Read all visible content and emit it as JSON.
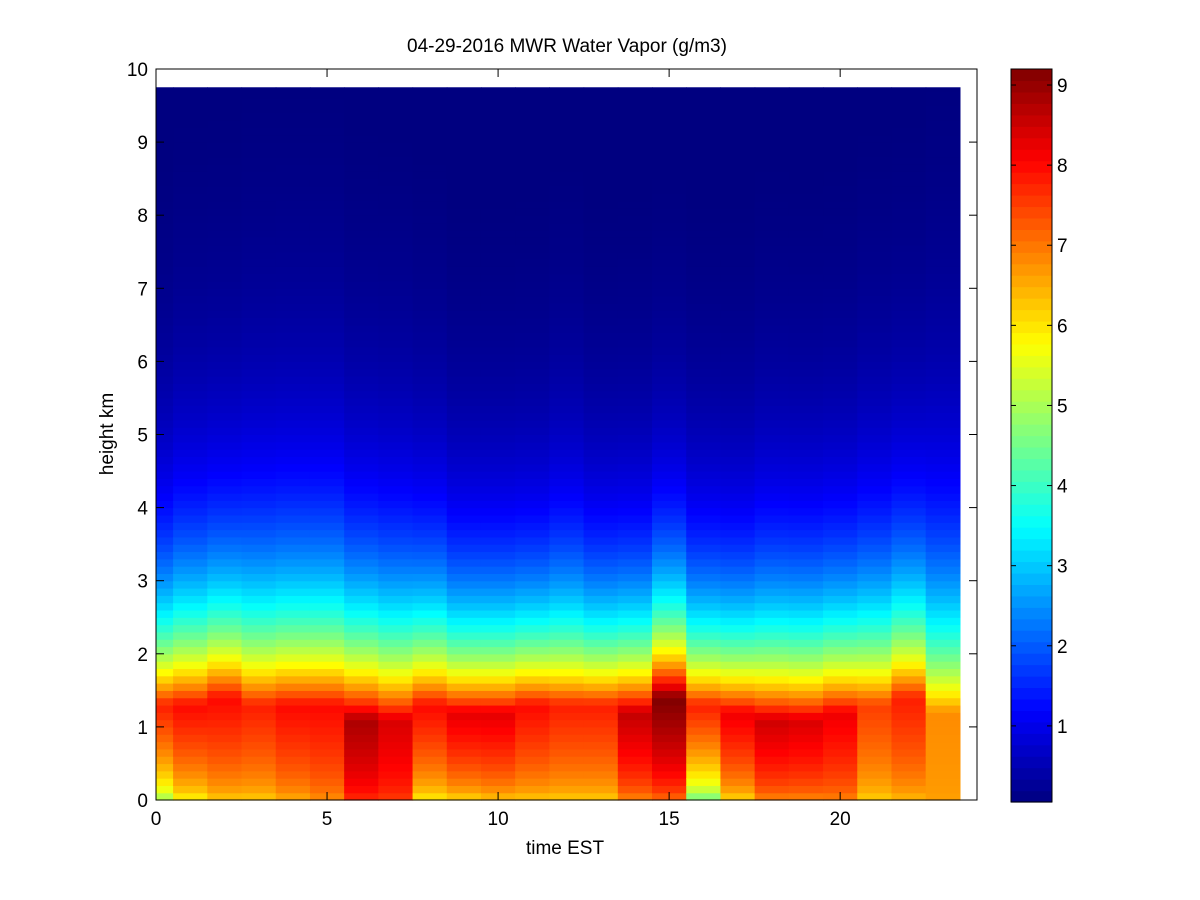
{
  "chart_data": {
    "type": "heatmap",
    "title": "04-29-2016 MWR Water Vapor (g/m3)",
    "xlabel": "time EST",
    "ylabel": "height km",
    "xlim": [
      0,
      24
    ],
    "ylim": [
      0,
      10
    ],
    "x_ticks": [
      0,
      5,
      10,
      15,
      20
    ],
    "y_ticks": [
      0,
      1,
      2,
      3,
      4,
      5,
      6,
      7,
      8,
      9,
      10
    ],
    "colorbar": {
      "colormap": "jet",
      "range": [
        0.05,
        9.2
      ],
      "ticks": [
        1,
        2,
        3,
        4,
        5,
        6,
        7,
        8,
        9
      ]
    },
    "data_extent": {
      "x": [
        0,
        23.5
      ],
      "y": [
        0,
        9.75
      ]
    },
    "time_hours": [
      0,
      1,
      2,
      3,
      4,
      5,
      6,
      7,
      8,
      9,
      10,
      11,
      12,
      13,
      14,
      15,
      16,
      17,
      18,
      19,
      20,
      21,
      22,
      23
    ],
    "surface_vapor_g_m3": [
      4.5,
      5.5,
      6.0,
      6.0,
      6.3,
      6.6,
      7.5,
      7.4,
      5.6,
      5.8,
      6.0,
      6.0,
      6.0,
      6.0,
      6.6,
      6.8,
      4.0,
      5.8,
      6.6,
      6.6,
      6.7,
      6.0,
      6.2,
      6.6
    ],
    "peak_vapor_g_m3": [
      7.8,
      8.0,
      8.0,
      7.8,
      8.0,
      8.0,
      8.8,
      8.4,
      8.0,
      8.3,
      8.3,
      8.0,
      7.8,
      7.8,
      8.6,
      9.2,
      7.8,
      8.2,
      8.5,
      8.4,
      8.2,
      7.5,
      7.8,
      6.8
    ],
    "peak_height_km": [
      1.3,
      1.3,
      1.4,
      1.3,
      1.3,
      1.3,
      1.1,
      1.1,
      1.3,
      1.2,
      1.2,
      1.3,
      1.3,
      1.3,
      1.2,
      1.4,
      1.3,
      1.2,
      1.1,
      1.1,
      1.2,
      1.3,
      1.4,
      1.2
    ],
    "scale_height_km": [
      1.5,
      1.6,
      1.6,
      1.7,
      1.7,
      1.7,
      1.6,
      1.6,
      1.5,
      1.4,
      1.4,
      1.4,
      1.5,
      1.4,
      1.4,
      1.4,
      1.4,
      1.4,
      1.5,
      1.5,
      1.5,
      1.6,
      1.6,
      1.8
    ]
  }
}
